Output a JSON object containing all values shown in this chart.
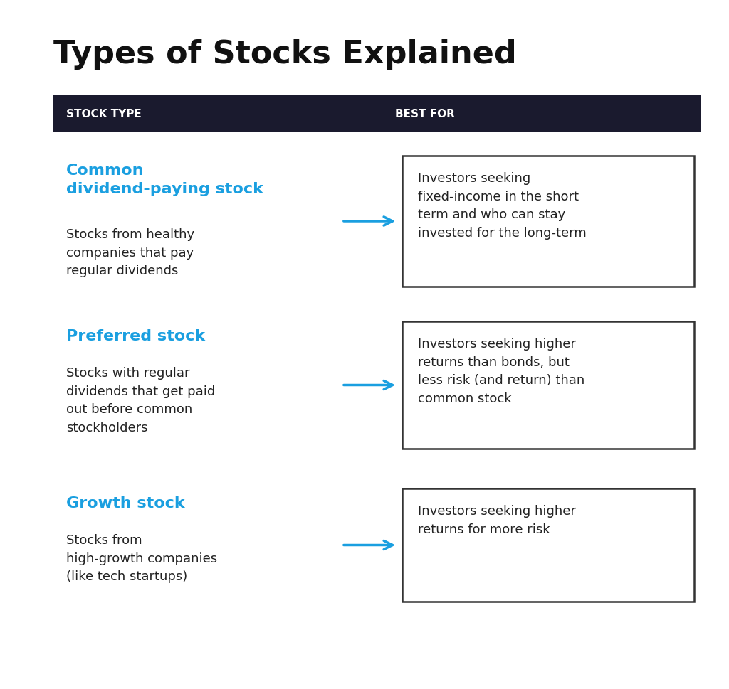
{
  "title": "Types of Stocks Explained",
  "title_fontsize": 32,
  "title_fontweight": "bold",
  "title_color": "#111111",
  "background_color": "#ffffff",
  "header_bg_color": "#1a1a2e",
  "header_text_color": "#ffffff",
  "header_col1": "STOCK TYPE",
  "header_col2": "BEST FOR",
  "blue_color": "#1a9fe0",
  "dark_color": "#222222",
  "arrow_color": "#1a9fe0",
  "box_border_color": "#333333",
  "rows": [
    {
      "title": "Common\ndividend-paying stock",
      "description": "Stocks from healthy\ncompanies that pay\nregular dividends",
      "best_for": "Investors seeking\nfixed-income in the short\nterm and who can stay\ninvested for the long-term"
    },
    {
      "title": "Preferred stock",
      "description": "Stocks with regular\ndividends that get paid\nout before common\nstockholders",
      "best_for": "Investors seeking higher\nreturns than bonds, but\nless risk (and return) than\ncommon stock"
    },
    {
      "title": "Growth stock",
      "description": "Stocks from\nhigh-growth companies\n(like tech startups)",
      "best_for": "Investors seeking higher\nreturns for more risk"
    }
  ]
}
